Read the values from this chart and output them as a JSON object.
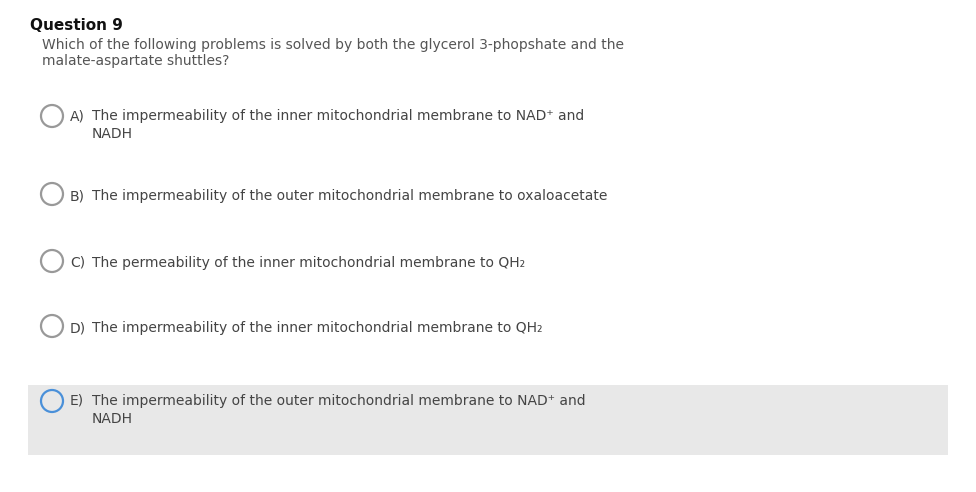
{
  "title": "Question 9",
  "question_line1": "Which of the following problems is solved by both the glycerol 3-phopshate and the",
  "question_line2": "malate-aspartate shuttles?",
  "options": [
    {
      "label": "A)",
      "line1": "The impermeability of the inner mitochondrial membrane to NAD⁺ and",
      "line2": "NADH",
      "circle_color": "#999999",
      "selected": false
    },
    {
      "label": "B)",
      "line1": "The impermeability of the outer mitochondrial membrane to oxaloacetate",
      "line2": null,
      "circle_color": "#999999",
      "selected": false
    },
    {
      "label": "C)",
      "line1": "The permeability of the inner mitochondrial membrane to QH₂",
      "line2": null,
      "circle_color": "#999999",
      "selected": false
    },
    {
      "label": "D)",
      "line1": "The impermeability of the inner mitochondrial membrane to QH₂",
      "line2": null,
      "circle_color": "#999999",
      "selected": false
    },
    {
      "label": "E)",
      "line1": "The impermeability of the outer mitochondrial membrane to NAD⁺ and",
      "line2": "NADH",
      "circle_color": "#4a90d9",
      "selected": true
    }
  ],
  "bg_color": "#ffffff",
  "highlight_color": "#e8e8e8",
  "title_fontsize": 11,
  "question_fontsize": 10,
  "option_label_fontsize": 10,
  "option_text_fontsize": 10
}
